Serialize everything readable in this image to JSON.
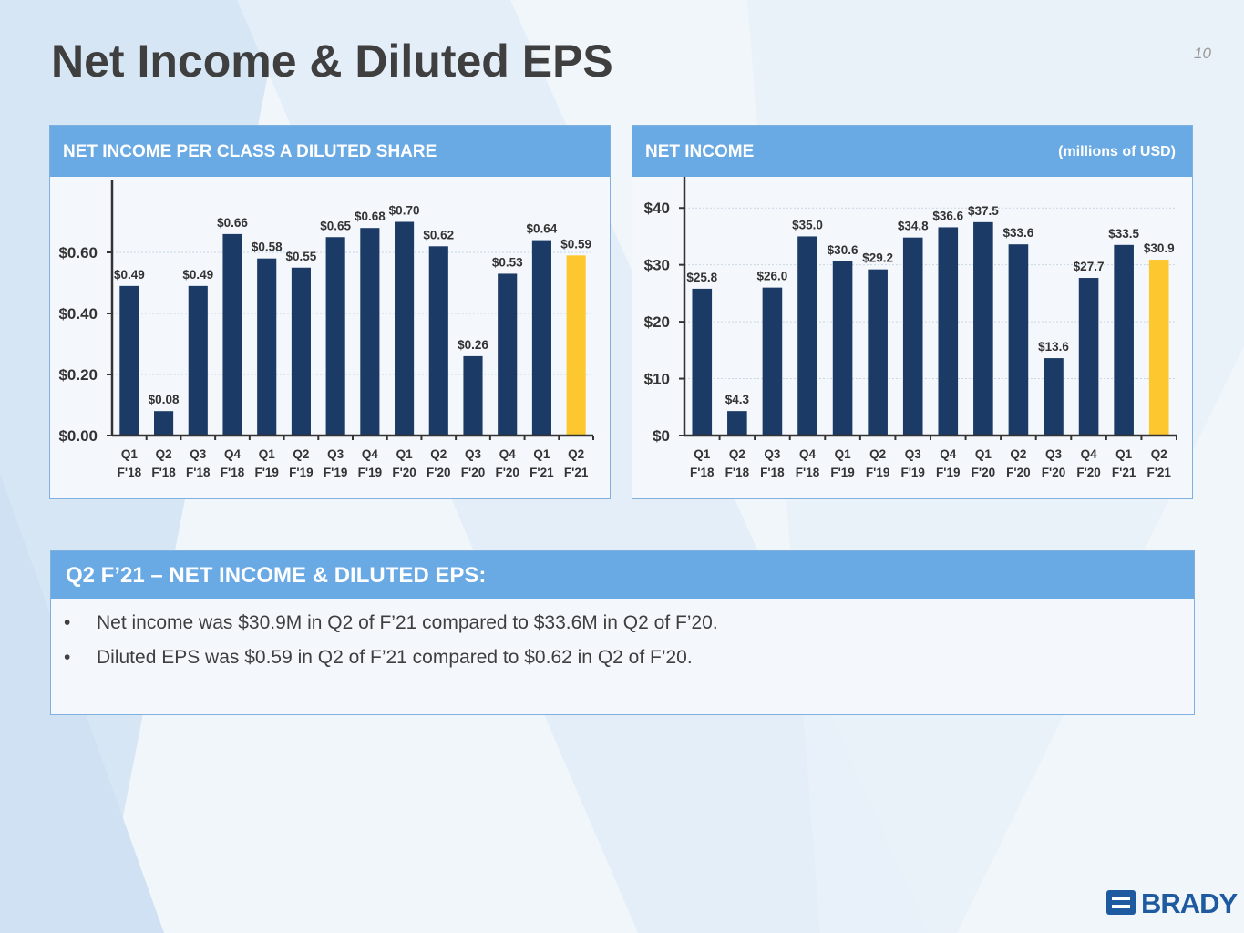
{
  "page": {
    "title": "Net Income & Diluted EPS",
    "page_number": "10"
  },
  "colors": {
    "bar": "#1b3a66",
    "highlight": "#fdc82f",
    "header": "#6aaae4",
    "title": "#3f3f3f",
    "brand": "#1e5aa0"
  },
  "chart_data": [
    {
      "type": "bar",
      "title": "NET INCOME PER CLASS A DILUTED SHARE",
      "unit_note": "",
      "categories": [
        [
          "Q1",
          "F'18"
        ],
        [
          "Q2",
          "F'18"
        ],
        [
          "Q3",
          "F'18"
        ],
        [
          "Q4",
          "F'18"
        ],
        [
          "Q1",
          "F'19"
        ],
        [
          "Q2",
          "F'19"
        ],
        [
          "Q3",
          "F'19"
        ],
        [
          "Q4",
          "F'19"
        ],
        [
          "Q1",
          "F'20"
        ],
        [
          "Q2",
          "F'20"
        ],
        [
          "Q3",
          "F'20"
        ],
        [
          "Q4",
          "F'20"
        ],
        [
          "Q1",
          "F'21"
        ],
        [
          "Q2",
          "F'21"
        ]
      ],
      "values": [
        0.49,
        0.08,
        0.49,
        0.66,
        0.58,
        0.55,
        0.65,
        0.68,
        0.7,
        0.62,
        0.26,
        0.53,
        0.64,
        0.59
      ],
      "labels": [
        "$0.49",
        "$0.08",
        "$0.49",
        "$0.66",
        "$0.58",
        "$0.55",
        "$0.65",
        "$0.68",
        "$0.70",
        "$0.62",
        "$0.26",
        "$0.53",
        "$0.64",
        "$0.59"
      ],
      "highlight_index": 13,
      "yticks": [
        0,
        0.2,
        0.4,
        0.6
      ],
      "ytick_labels": [
        "$0.00",
        "$0.20",
        "$0.40",
        "$0.60"
      ],
      "ylim": [
        0,
        0.8
      ],
      "grid": true
    },
    {
      "type": "bar",
      "title": "NET INCOME",
      "unit_note": "(millions of USD)",
      "categories": [
        [
          "Q1",
          "F'18"
        ],
        [
          "Q2",
          "F'18"
        ],
        [
          "Q3",
          "F'18"
        ],
        [
          "Q4",
          "F'18"
        ],
        [
          "Q1",
          "F'19"
        ],
        [
          "Q2",
          "F'19"
        ],
        [
          "Q3",
          "F'19"
        ],
        [
          "Q4",
          "F'19"
        ],
        [
          "Q1",
          "F'20"
        ],
        [
          "Q2",
          "F'20"
        ],
        [
          "Q3",
          "F'20"
        ],
        [
          "Q4",
          "F'20"
        ],
        [
          "Q1",
          "F'21"
        ],
        [
          "Q2",
          "F'21"
        ]
      ],
      "values": [
        25.8,
        4.3,
        26.0,
        35.0,
        30.6,
        29.2,
        34.8,
        36.6,
        37.5,
        33.6,
        13.6,
        27.7,
        33.5,
        30.9
      ],
      "labels": [
        "$25.8",
        "$4.3",
        "$26.0",
        "$35.0",
        "$30.6",
        "$29.2",
        "$34.8",
        "$36.6",
        "$37.5",
        "$33.6",
        "$13.6",
        "$27.7",
        "$33.5",
        "$30.9"
      ],
      "highlight_index": 13,
      "yticks": [
        0,
        10,
        20,
        30,
        40
      ],
      "ytick_labels": [
        "$0",
        "$10",
        "$20",
        "$30",
        "$40"
      ],
      "ylim": [
        0,
        45
      ],
      "grid": true
    }
  ],
  "summary": {
    "title": "Q2 F’21 – NET INCOME & DILUTED EPS:",
    "bullet_symbol": "•",
    "bullets": [
      "Net income was $30.9M in Q2 of F’21 compared to $33.6M in Q2 of F’20.",
      "Diluted EPS was $0.59 in Q2 of F’21 compared to $0.62 in Q2 of F’20."
    ]
  },
  "brand": {
    "name": "BRADY"
  }
}
